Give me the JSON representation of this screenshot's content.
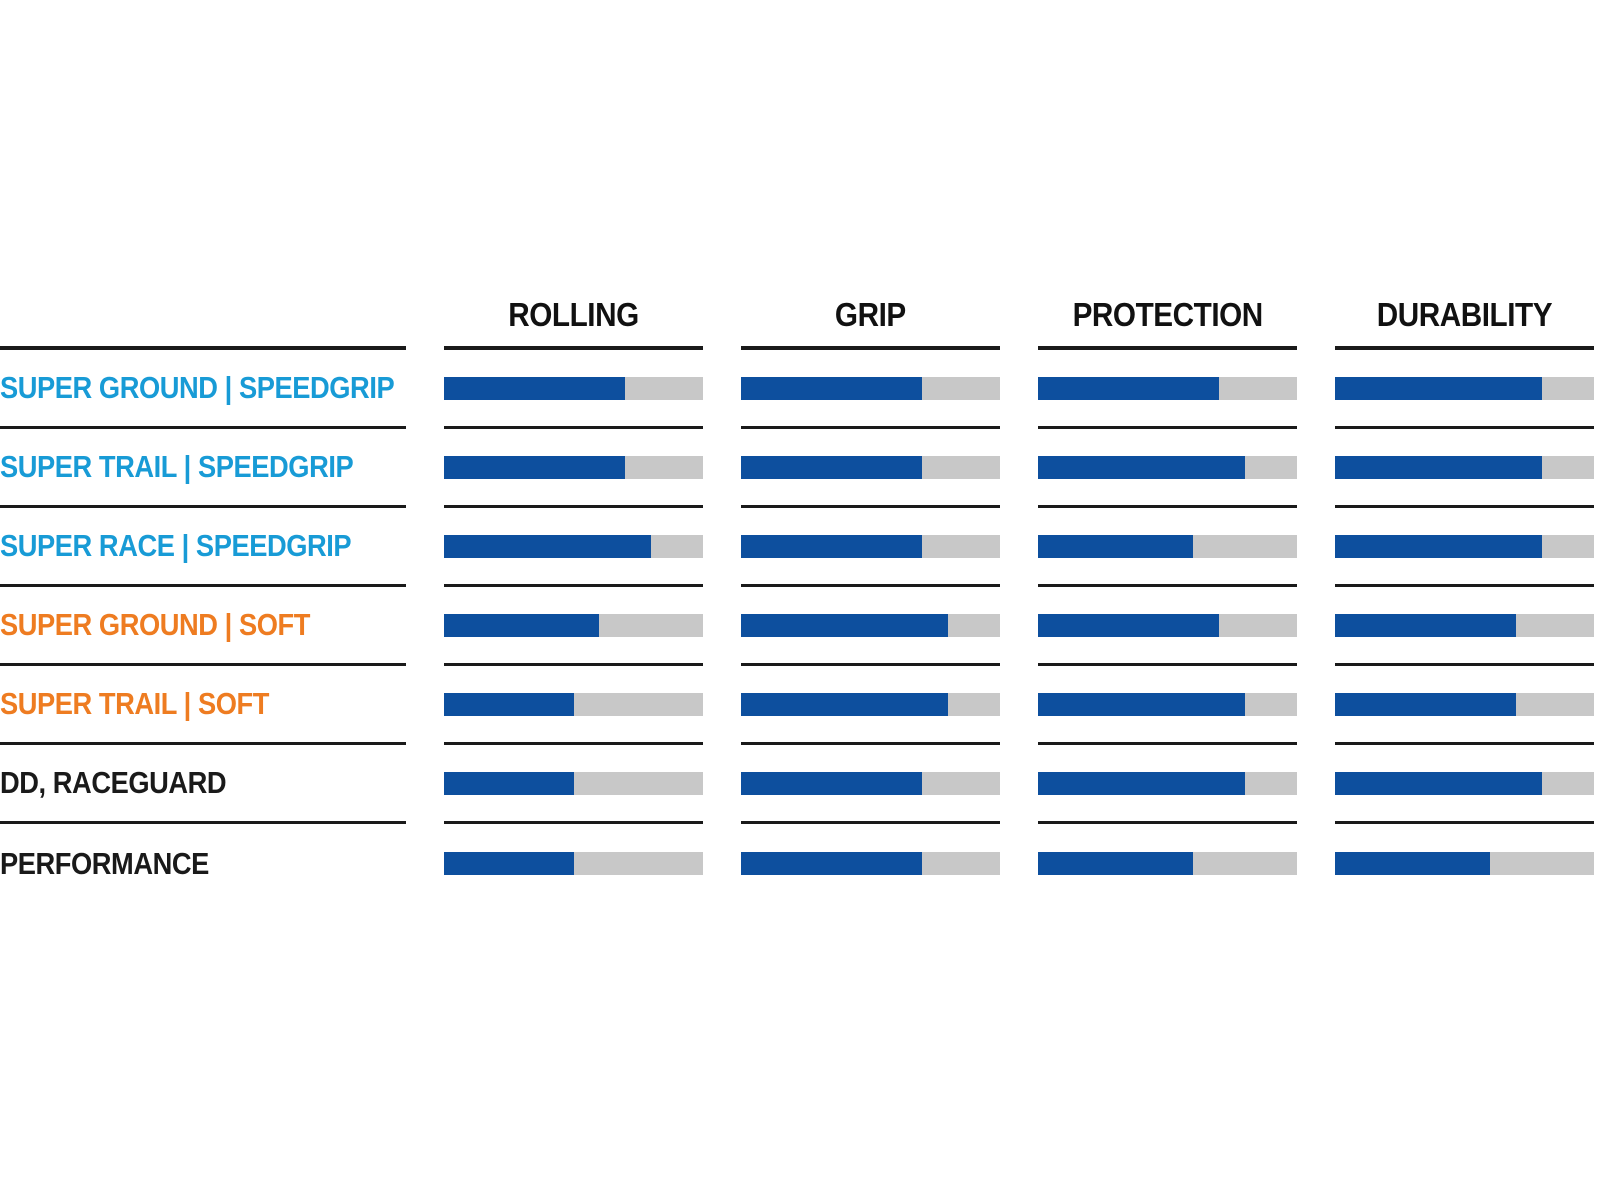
{
  "chart_data": {
    "type": "bar",
    "description_of_visual": "horizontal rating bars, fill fraction of full track per attribute",
    "categories": [
      "ROLLING",
      "GRIP",
      "PROTECTION",
      "DURABILITY"
    ],
    "value_scale": {
      "min": 0,
      "max": 1
    },
    "series": [
      {
        "name": "SUPER GROUND | SPEEDGRIP",
        "color_key": "cyan",
        "values": [
          0.7,
          0.7,
          0.7,
          0.8
        ]
      },
      {
        "name": "SUPER TRAIL | SPEEDGRIP",
        "color_key": "cyan",
        "values": [
          0.7,
          0.7,
          0.8,
          0.8
        ]
      },
      {
        "name": "SUPER RACE | SPEEDGRIP",
        "color_key": "cyan",
        "values": [
          0.8,
          0.7,
          0.6,
          0.8
        ]
      },
      {
        "name": "SUPER GROUND | SOFT",
        "color_key": "orange",
        "values": [
          0.6,
          0.8,
          0.7,
          0.7
        ]
      },
      {
        "name": "SUPER TRAIL | SOFT",
        "color_key": "orange",
        "values": [
          0.5,
          0.8,
          0.8,
          0.7
        ]
      },
      {
        "name": "DD, RACEGUARD",
        "color_key": "black",
        "values": [
          0.5,
          0.7,
          0.8,
          0.8
        ]
      },
      {
        "name": "PERFORMANCE",
        "color_key": "black",
        "values": [
          0.5,
          0.7,
          0.6,
          0.6
        ]
      }
    ],
    "legend_position": "none",
    "grid": "row separator rules per column segment"
  },
  "colors": {
    "bar_fill": "#0d4f9e",
    "bar_track": "#c8c8c8",
    "label_cyan": "#189bd6",
    "label_orange": "#ee7c21",
    "label_black": "#1a1a1a",
    "rule": "#1a1a1a",
    "background": "#ffffff"
  }
}
